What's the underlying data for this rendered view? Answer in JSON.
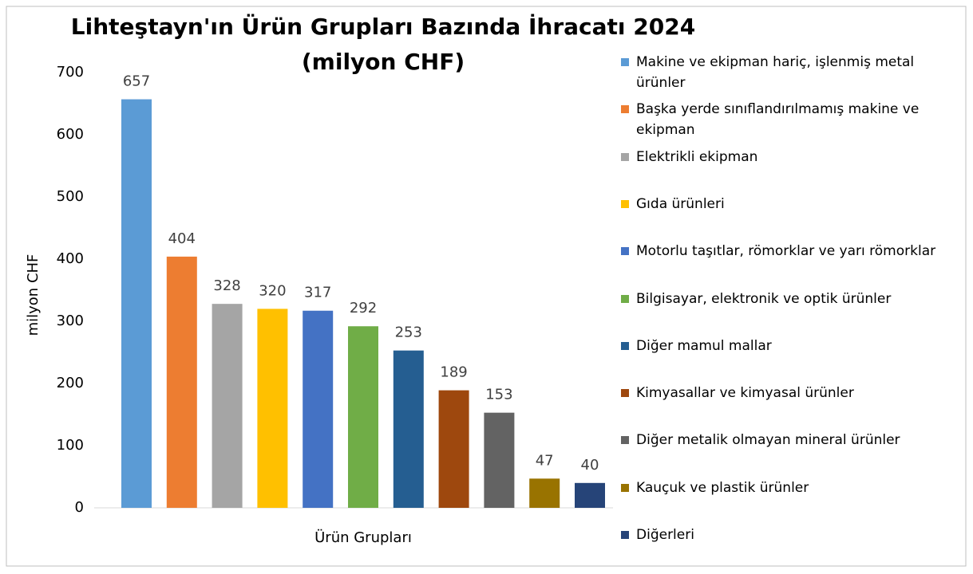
{
  "chart_data": {
    "type": "bar",
    "title": "Lihteştayn'ın Ürün Grupları Bazında İhracatı 2024 (milyon CHF)",
    "y_label": "milyon CHF",
    "categories": [
      "Ürün Grupları"
    ],
    "ylim": [
      0,
      700
    ],
    "yticks": [
      0,
      100,
      200,
      300,
      400,
      500,
      600,
      700
    ],
    "grid": false,
    "legend": "right",
    "series": [
      {
        "name": "Makine ve ekipman hariç, işlenmiş metal ürünler",
        "color": "#5b9bd5",
        "values": [
          657
        ]
      },
      {
        "name": "Başka yerde sınıflandırılmamış makine ve ekipman",
        "color": "#ed7d31",
        "values": [
          404
        ]
      },
      {
        "name": "Elektrikli ekipman",
        "color": "#a5a5a5",
        "values": [
          328
        ]
      },
      {
        "name": "Gıda ürünleri",
        "color": "#ffc000",
        "values": [
          320
        ]
      },
      {
        "name": "Motorlu taşıtlar, römorklar ve yarı römorklar",
        "color": "#4472c4",
        "values": [
          317
        ]
      },
      {
        "name": "Bilgisayar, elektronik ve optik ürünler",
        "color": "#70ad47",
        "values": [
          292
        ]
      },
      {
        "name": "Diğer mamul mallar",
        "color": "#255e91",
        "values": [
          253
        ]
      },
      {
        "name": "Kimyasallar ve kimyasal ürünler",
        "color": "#9e480e",
        "values": [
          189
        ]
      },
      {
        "name": "Diğer metalik olmayan mineral ürünler",
        "color": "#636363",
        "values": [
          153
        ]
      },
      {
        "name": "Kauçuk ve plastik ürünler",
        "color": "#997300",
        "values": [
          47
        ]
      },
      {
        "name": "Diğerleri",
        "color": "#264478",
        "values": [
          40
        ]
      }
    ]
  }
}
